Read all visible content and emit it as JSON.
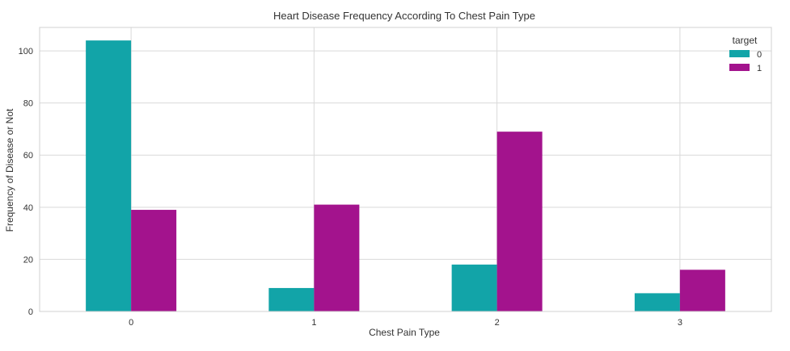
{
  "chart_data": {
    "type": "bar",
    "title": "Heart Disease Frequency According To Chest Pain Type",
    "xlabel": "Chest Pain Type",
    "ylabel": "Frequency of Disease or Not",
    "categories": [
      "0",
      "1",
      "2",
      "3"
    ],
    "series": [
      {
        "name": "0",
        "values": [
          104,
          9,
          18,
          7
        ],
        "color": "#12a4a8"
      },
      {
        "name": "1",
        "values": [
          39,
          41,
          69,
          16
        ],
        "color": "#a3138d"
      }
    ],
    "ylim": [
      0,
      109
    ],
    "yticks": [
      0,
      20,
      40,
      60,
      80,
      100
    ],
    "grid": true,
    "legend": {
      "title": "target",
      "placement": "top-right"
    },
    "background": "#ffffff",
    "grid_color": "#d9d9d9"
  }
}
